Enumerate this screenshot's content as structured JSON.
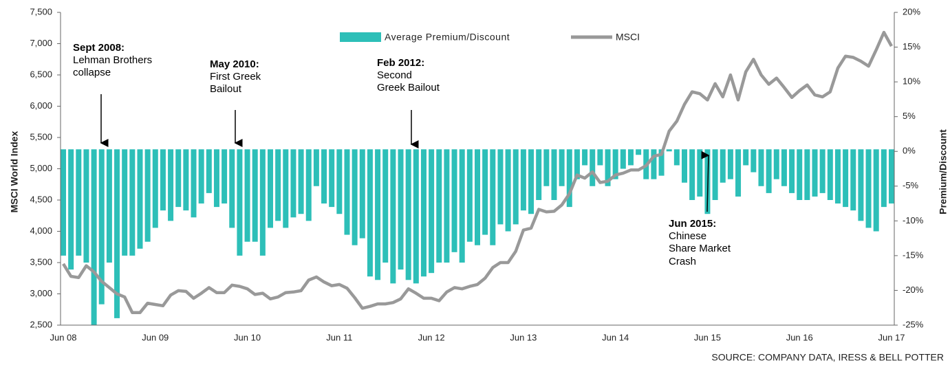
{
  "chart_data": {
    "type": "bar_line",
    "y_label": "MSCI World Index",
    "y2_label": "Premium/Discount",
    "source": "SOURCE: COMPANY DATA, IRESS & BELL POTTER",
    "categories": [
      "Jun 08",
      null,
      null,
      null,
      null,
      null,
      null,
      null,
      null,
      null,
      null,
      null,
      "Jun 09",
      null,
      null,
      null,
      null,
      null,
      null,
      null,
      null,
      null,
      null,
      null,
      "Jun 10",
      null,
      null,
      null,
      null,
      null,
      null,
      null,
      null,
      null,
      null,
      null,
      "Jun 11",
      null,
      null,
      null,
      null,
      null,
      null,
      null,
      null,
      null,
      null,
      null,
      "Jun 12",
      null,
      null,
      null,
      null,
      null,
      null,
      null,
      null,
      null,
      null,
      null,
      "Jun 13",
      null,
      null,
      null,
      null,
      null,
      null,
      null,
      null,
      null,
      null,
      null,
      "Jun 14",
      null,
      null,
      null,
      null,
      null,
      null,
      null,
      null,
      null,
      null,
      null,
      "Jun 15",
      null,
      null,
      null,
      null,
      null,
      null,
      null,
      null,
      null,
      null,
      null,
      "Jun 16",
      null,
      null,
      null,
      null,
      null,
      null,
      null,
      null,
      null,
      null,
      null,
      "Jun 17"
    ],
    "series": [
      {
        "name": "Average Premium/Discount",
        "color": "#2dbfb8",
        "axis": "y2",
        "kind": "bar",
        "values": [
          -15,
          -17,
          -15,
          -16,
          -25,
          -22,
          -16,
          -24,
          -15,
          -15,
          -14,
          -13,
          -11,
          -8.5,
          -10,
          -8,
          -8.5,
          -9.5,
          -7.5,
          -6,
          -8,
          -7.5,
          -11,
          -15,
          -13,
          -13,
          -15,
          -11,
          -10,
          -11,
          -9.5,
          -9,
          -10,
          -5,
          -7.5,
          -8,
          -9,
          -12,
          -13.5,
          -12.5,
          -18,
          -18.5,
          -16,
          -19,
          -17,
          -18.5,
          -19,
          -18,
          -17.5,
          -16,
          -16,
          -14.5,
          -16,
          -13,
          -13.5,
          -12,
          -13.5,
          -10.5,
          -11.5,
          -10.5,
          -8.5,
          -9,
          -7,
          -5,
          -7,
          -5,
          -8,
          -4,
          -2,
          -5,
          -2,
          -5,
          -4,
          -2.5,
          -2,
          -0.5,
          -4,
          -4,
          -3.5,
          0,
          -2,
          -4.5,
          -7,
          -6.5,
          -9,
          -7,
          -4.5,
          -4,
          -6.5,
          -2,
          -3,
          -5,
          -6,
          -4,
          -5,
          -6,
          -7,
          -7,
          -6.5,
          -6,
          -7,
          -7.5,
          -8,
          -8.5,
          -10,
          -11,
          -11.5,
          -8,
          -7.5
        ]
      },
      {
        "name": "MSCI",
        "color": "#999999",
        "axis": "y",
        "kind": "line",
        "values": [
          3480,
          3280,
          3260,
          3450,
          3350,
          3200,
          3100,
          3000,
          2950,
          2700,
          2700,
          2850,
          2830,
          2810,
          2980,
          3050,
          3040,
          2930,
          3010,
          3100,
          3020,
          3020,
          3140,
          3120,
          3080,
          2990,
          3010,
          2920,
          2950,
          3020,
          3030,
          3050,
          3220,
          3270,
          3190,
          3130,
          3150,
          3090,
          2940,
          2770,
          2800,
          2840,
          2840,
          2860,
          2920,
          3080,
          3010,
          2930,
          2930,
          2890,
          3030,
          3100,
          3080,
          3120,
          3150,
          3250,
          3420,
          3500,
          3500,
          3680,
          4020,
          4050,
          4350,
          4310,
          4320,
          4420,
          4600,
          4900,
          4850,
          4950,
          4780,
          4800,
          4900,
          4930,
          4980,
          4980,
          5050,
          5200,
          5230,
          5600,
          5760,
          6030,
          6230,
          6200,
          6100,
          6360,
          6150,
          6500,
          6100,
          6550,
          6750,
          6500,
          6350,
          6450,
          6300,
          6140,
          6250,
          6340,
          6180,
          6150,
          6230,
          6610,
          6800,
          6780,
          6720,
          6640,
          6900,
          7180,
          6960
        ]
      }
    ],
    "ylim": [
      2500,
      7500
    ],
    "yticks": [
      {
        "value": 2500,
        "label": "2,500"
      },
      {
        "value": 3000,
        "label": "3,000"
      },
      {
        "value": 3500,
        "label": "3,500"
      },
      {
        "value": 4000,
        "label": "4,000"
      },
      {
        "value": 4500,
        "label": "4,500"
      },
      {
        "value": 5000,
        "label": "5,000"
      },
      {
        "value": 5500,
        "label": "5,500"
      },
      {
        "value": 6000,
        "label": "6,000"
      },
      {
        "value": 6500,
        "label": "6,500"
      },
      {
        "value": 7000,
        "label": "7,000"
      },
      {
        "value": 7500,
        "label": "7,500"
      }
    ],
    "y2lim": [
      -25,
      20
    ],
    "y2ticks": [
      {
        "value": -25,
        "label": "-25%"
      },
      {
        "value": -20,
        "label": "-20%"
      },
      {
        "value": -15,
        "label": "-15%"
      },
      {
        "value": -10,
        "label": "-10%"
      },
      {
        "value": -5,
        "label": "-5%"
      },
      {
        "value": 0,
        "label": "0%"
      },
      {
        "value": 5,
        "label": "5%"
      },
      {
        "value": 10,
        "label": "10%"
      },
      {
        "value": 15,
        "label": "15%"
      },
      {
        "value": 20,
        "label": "20%"
      }
    ],
    "annotations": [
      {
        "title": "Sept 2008:",
        "lines": [
          "Lehman Brothers",
          "collapse"
        ]
      },
      {
        "title": "May 2010:",
        "lines": [
          "First Greek",
          "Bailout"
        ]
      },
      {
        "title": "Feb 2012:",
        "lines": [
          "Second",
          "Greek Bailout"
        ]
      },
      {
        "title": "Jun 2015:",
        "lines": [
          "Chinese",
          "Share Market",
          "Crash"
        ]
      }
    ]
  }
}
